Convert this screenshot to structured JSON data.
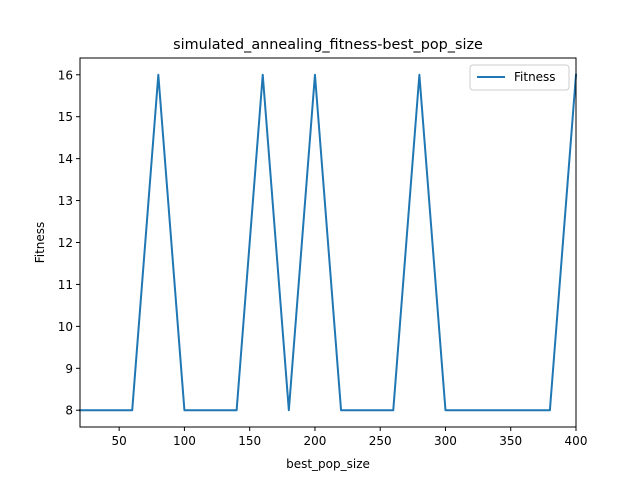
{
  "chart_data": {
    "type": "line",
    "title": "simulated_annealing_fitness-best_pop_size",
    "xlabel": "best_pop_size",
    "ylabel": "Fitness",
    "xlim": [
      20,
      400
    ],
    "ylim": [
      7.6,
      16.4
    ],
    "xticks": [
      50,
      100,
      150,
      200,
      250,
      300,
      350,
      400
    ],
    "yticks": [
      8,
      9,
      10,
      11,
      12,
      13,
      14,
      15,
      16
    ],
    "grid": false,
    "legend_position": "top-right",
    "series": [
      {
        "name": "Fitness",
        "color": "#1f77b4",
        "x": [
          20,
          40,
          60,
          80,
          100,
          120,
          140,
          160,
          180,
          200,
          220,
          240,
          260,
          280,
          300,
          320,
          340,
          360,
          380,
          400
        ],
        "y": [
          8,
          8,
          8,
          16,
          8,
          8,
          8,
          16,
          8,
          16,
          8,
          8,
          8,
          16,
          8,
          8,
          8,
          8,
          8,
          16
        ]
      }
    ]
  }
}
